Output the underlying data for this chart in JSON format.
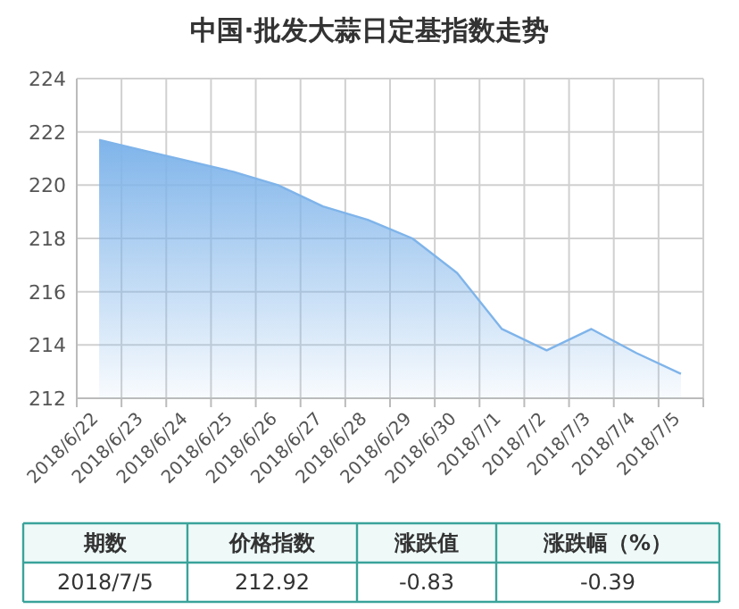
{
  "chart_data": {
    "type": "area",
    "title": "中国·批发大蒜日定基指数走势",
    "categories": [
      "2018/6/22",
      "2018/6/23",
      "2018/6/24",
      "2018/6/25",
      "2018/6/26",
      "2018/6/27",
      "2018/6/28",
      "2018/6/29",
      "2018/6/30",
      "2018/7/1",
      "2018/7/2",
      "2018/7/3",
      "2018/7/4",
      "2018/7/5"
    ],
    "series": [
      {
        "color": "#7fb4ea",
        "values": [
          221.7,
          221.3,
          220.9,
          220.5,
          220.0,
          219.2,
          218.7,
          218.0,
          216.7,
          214.6,
          213.8,
          214.6,
          213.7,
          212.92
        ]
      }
    ],
    "ylim": [
      212,
      224
    ],
    "yticks": [
      212,
      214,
      216,
      218,
      220,
      222,
      224
    ],
    "grid": true,
    "annotations": [
      "期数",
      "价格指数",
      "涨跌值",
      "涨跌幅（%）",
      "2018/7/5",
      "212.92",
      "-0.83",
      "-0.39"
    ]
  }
}
